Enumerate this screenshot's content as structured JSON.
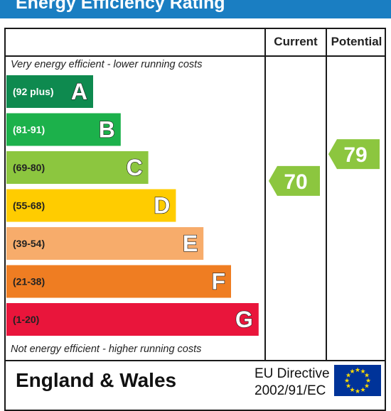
{
  "title": "Energy Efficiency Rating",
  "columns": {
    "current": "Current",
    "potential": "Potential"
  },
  "top_note": "Very energy efficient - lower running costs",
  "bottom_note": "Not energy efficient - higher running costs",
  "footer": {
    "region": "England & Wales",
    "directive_line1": "EU Directive",
    "directive_line2": "2002/91/EC"
  },
  "colors": {
    "title_bar": "#1a7ec2",
    "flag": "#003399",
    "flag_stars": "#ffdd00"
  },
  "chart_data": {
    "type": "bar",
    "categories": [
      "A",
      "B",
      "C",
      "D",
      "E",
      "F",
      "G"
    ],
    "bands": [
      {
        "letter": "A",
        "range": "(92 plus)",
        "color": "#0e8a4f"
      },
      {
        "letter": "B",
        "range": "(81-91)",
        "color": "#1cb14b"
      },
      {
        "letter": "C",
        "range": "(69-80)",
        "color": "#8cc63f"
      },
      {
        "letter": "D",
        "range": "(55-68)",
        "color": "#ffcc00"
      },
      {
        "letter": "E",
        "range": "(39-54)",
        "color": "#f7ac6b"
      },
      {
        "letter": "F",
        "range": "(21-38)",
        "color": "#ef7d22"
      },
      {
        "letter": "G",
        "range": "(1-20)",
        "color": "#e9153b"
      }
    ],
    "current": {
      "value": 70,
      "band": "C",
      "color": "#8cc63f"
    },
    "potential": {
      "value": 79,
      "band": "C",
      "color": "#8cc63f"
    }
  }
}
